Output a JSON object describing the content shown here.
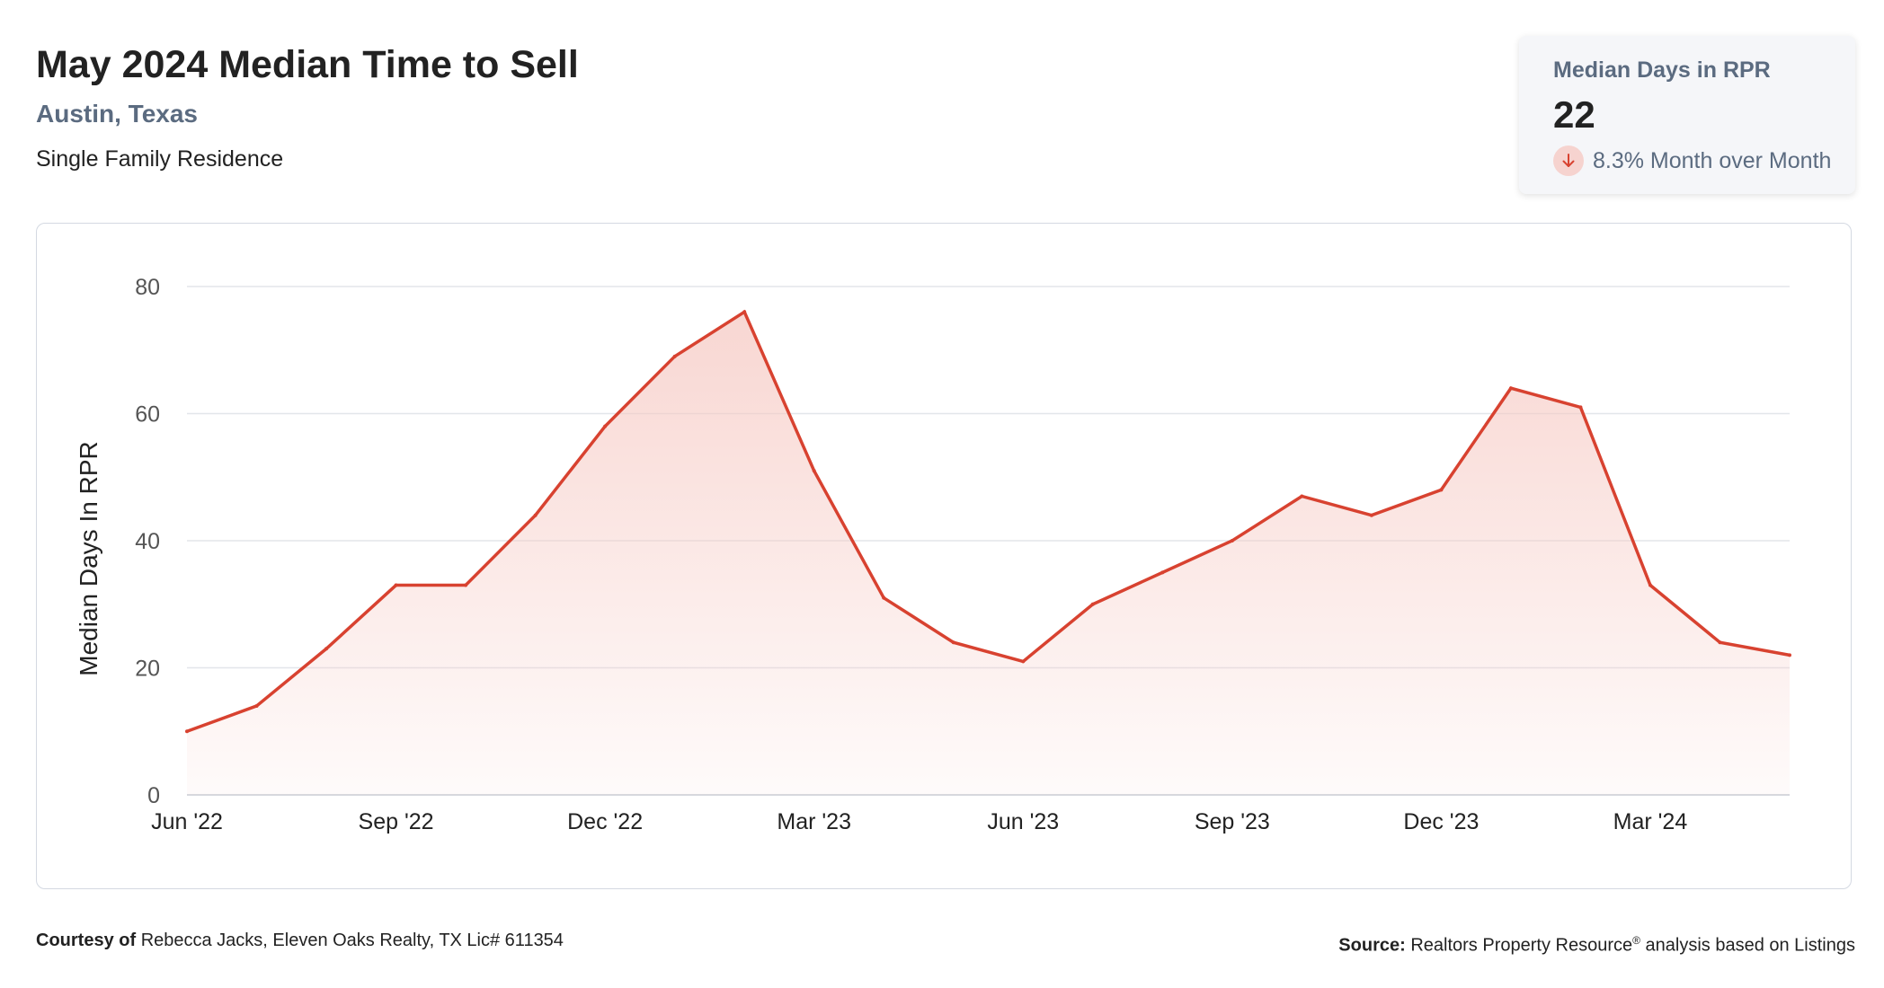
{
  "header": {
    "title": "May 2024 Median Time to Sell",
    "subtitle": "Austin, Texas",
    "property_type": "Single Family Residence"
  },
  "summary_card": {
    "label": "Median Days in RPR",
    "value": "22",
    "change": "8.3% Month over Month",
    "change_direction": "down",
    "icon": "arrow-down-icon"
  },
  "chart_data": {
    "type": "area",
    "ylabel": "Median Days In RPR",
    "xlabel": "",
    "ylim": [
      0,
      80
    ],
    "yticks": [
      0,
      20,
      40,
      60,
      80
    ],
    "x": [
      "Jun '22",
      "Jul '22",
      "Aug '22",
      "Sep '22",
      "Oct '22",
      "Nov '22",
      "Dec '22",
      "Jan '23",
      "Feb '23",
      "Mar '23",
      "Apr '23",
      "May '23",
      "Jun '23",
      "Jul '23",
      "Aug '23",
      "Sep '23",
      "Oct '23",
      "Nov '23",
      "Dec '23",
      "Jan '24",
      "Feb '24",
      "Mar '24",
      "Apr '24",
      "May '24"
    ],
    "xtick_labels": [
      "Jun '22",
      "Sep '22",
      "Dec '22",
      "Mar '23",
      "Jun '23",
      "Sep '23",
      "Dec '23",
      "Mar '24"
    ],
    "series": [
      {
        "values": [
          10,
          14,
          23,
          33,
          33,
          44,
          58,
          69,
          76,
          51,
          31,
          24,
          21,
          30,
          35,
          40,
          47,
          44,
          48,
          64,
          61,
          33,
          24,
          22
        ]
      }
    ],
    "grid": true,
    "line_color": "#d84230",
    "fill_color": "#f6c9c3"
  },
  "footer": {
    "courtesy_label": "Courtesy of",
    "courtesy_text": "Rebecca Jacks, Eleven Oaks Realty, TX Lic# 611354",
    "source_label": "Source:",
    "source_text_1": "Realtors Property Resource",
    "source_mark": "®",
    "source_text_2": "analysis based on Listings"
  }
}
